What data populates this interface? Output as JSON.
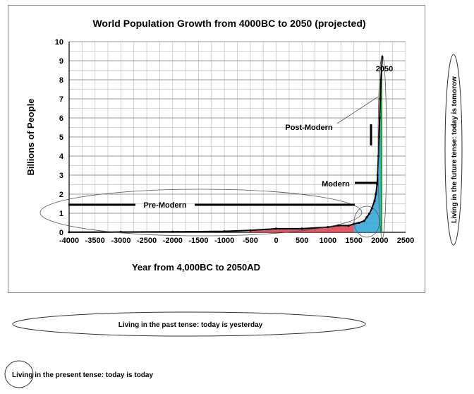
{
  "chart_data": {
    "type": "line",
    "title": "World Population Growth  from 4000BC to 2050 (projected)",
    "xlabel": "Year from 4,000BC to 2050AD",
    "ylabel": "Billions  of People",
    "xlim": [
      -4000,
      2500
    ],
    "ylim": [
      0,
      10
    ],
    "x_ticks": [
      "-4000",
      "-3500",
      "-3000",
      "-2500",
      "-2000",
      "-1500",
      "-1000",
      "-500",
      "0",
      "500",
      "1000",
      "1500",
      "2000",
      "2500"
    ],
    "y_ticks": [
      "0",
      "1",
      "2",
      "3",
      "4",
      "5",
      "6",
      "7",
      "8",
      "9",
      "10"
    ],
    "grid": true,
    "series": [
      {
        "x": [
          -4000,
          -3000,
          -2000,
          -1000,
          -500,
          0,
          500,
          1000,
          1200,
          1400,
          1500,
          1600,
          1700,
          1750,
          1800,
          1850,
          1900,
          1927,
          1950,
          1960,
          1974,
          1987,
          1999,
          2011,
          2024,
          2050
        ],
        "values": [
          0.007,
          0.014,
          0.027,
          0.05,
          0.1,
          0.19,
          0.19,
          0.275,
          0.36,
          0.35,
          0.44,
          0.5,
          0.6,
          0.79,
          0.98,
          1.26,
          1.65,
          2.0,
          2.52,
          3.0,
          4.0,
          5.0,
          6.0,
          7.0,
          8.0,
          9.2
        ]
      }
    ],
    "annotations": [
      {
        "text": "2050",
        "x": 2050,
        "y": 8.8
      },
      {
        "text": "Post-Modern"
      },
      {
        "text": "Modern"
      },
      {
        "text": "Pre-Modern"
      }
    ],
    "side_notes": {
      "future": "Living in the future tense: today is tomorow",
      "past": "Living in the past tense: today is yesterday",
      "present": "Living in the present tense: today is today"
    },
    "colors": {
      "pre_modern_fill": "#e03a4a",
      "modern_fill": "#2aa3d8",
      "post_modern_fill": "#1aa82a",
      "line": "#000000",
      "grid": "#c8c8c8"
    }
  }
}
